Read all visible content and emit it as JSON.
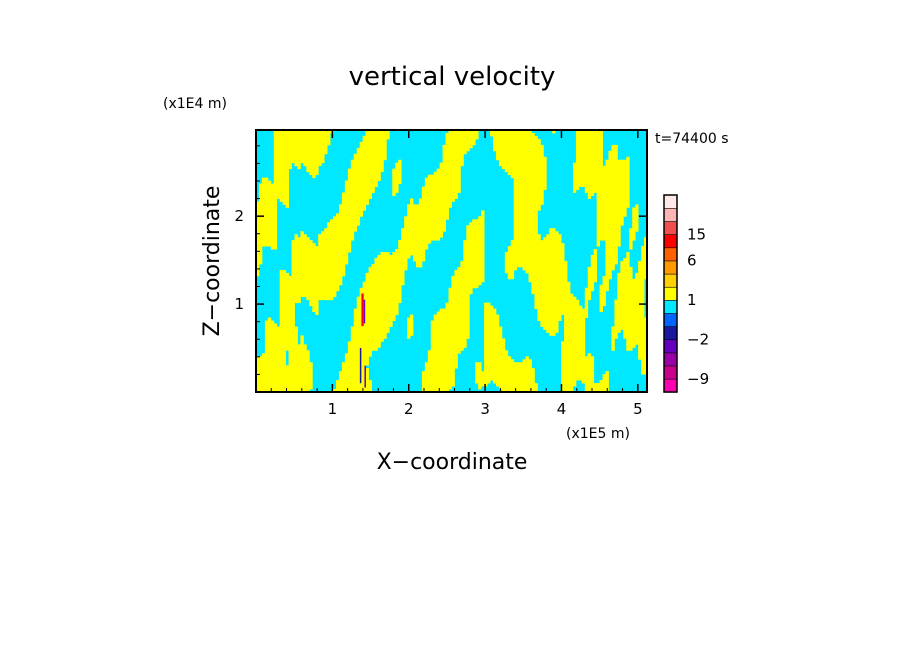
{
  "chart_data": {
    "type": "heatmap",
    "title": "vertical velocity",
    "xlabel": "X−coordinate",
    "ylabel": "Z−coordinate",
    "x_unit": "(x1E5 m)",
    "y_unit": "(x1E4 m)",
    "time_label": "t=74400 s",
    "xlim": [
      0,
      5.12
    ],
    "ylim": [
      0,
      2.98
    ],
    "x_ticks": [
      {
        "value": 1,
        "label": "1"
      },
      {
        "value": 2,
        "label": "2"
      },
      {
        "value": 3,
        "label": "3"
      },
      {
        "value": 4,
        "label": "4"
      },
      {
        "value": 5,
        "label": "5"
      }
    ],
    "y_ticks": [
      {
        "value": 1,
        "label": "1"
      },
      {
        "value": 2,
        "label": "2"
      }
    ],
    "field_colors": {
      "positive": "#ffff00",
      "negative": "#00e8ff"
    },
    "colorbar": {
      "levels": [
        -12,
        -9,
        -6,
        -4,
        -2,
        -1,
        0,
        1,
        2,
        4,
        6,
        10,
        15,
        20,
        25
      ],
      "colors": [
        "#ff00b0",
        "#c8008c",
        "#9a00a8",
        "#6600c0",
        "#1a1aa0",
        "#0064ff",
        "#00e8ff",
        "#ffff00",
        "#ffd000",
        "#ff9900",
        "#ff6000",
        "#ff0000",
        "#f05050",
        "#ffb4b4",
        "#ffe8e8"
      ],
      "tick_labels": [
        {
          "value": 15,
          "label": "15"
        },
        {
          "value": 6,
          "label": "6"
        },
        {
          "value": 1,
          "label": "1"
        },
        {
          "value": -2,
          "label": "−2"
        },
        {
          "value": -9,
          "label": "−9"
        }
      ]
    }
  }
}
